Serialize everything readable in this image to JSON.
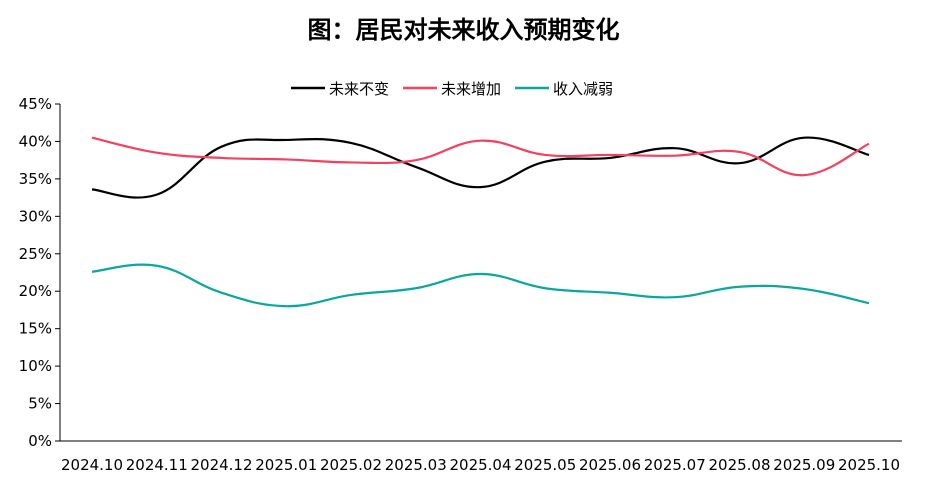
{
  "chart_data": {
    "type": "line",
    "title": "图：居民对未来收入预期变化",
    "xlabel": "",
    "ylabel": "",
    "categories": [
      "2024.10",
      "2024.11",
      "2024.12",
      "2025.01",
      "2025.02",
      "2025.03",
      "2025.04",
      "2025.05",
      "2025.06",
      "2025.07",
      "2025.08",
      "2025.09",
      "2025.10"
    ],
    "ylim": [
      0,
      45
    ],
    "yticks": [
      "0%",
      "5%",
      "10%",
      "15%",
      "20%",
      "25%",
      "30%",
      "35%",
      "40%",
      "45%"
    ],
    "ytick_values": [
      0,
      5,
      10,
      15,
      20,
      25,
      30,
      35,
      40,
      45
    ],
    "grid": false,
    "legend_position": "top",
    "smooth": true,
    "series": [
      {
        "name": "未来不变",
        "color": "#000000",
        "values": [
          33.6,
          32.9,
          39.3,
          40.2,
          39.8,
          36.6,
          33.9,
          37.3,
          37.8,
          39.1,
          37.1,
          40.5,
          38.2
        ]
      },
      {
        "name": "未来增加",
        "color": "#f5405f",
        "values": [
          40.5,
          38.5,
          37.8,
          37.6,
          37.2,
          37.5,
          40.1,
          38.2,
          38.2,
          38.1,
          38.6,
          35.5,
          39.7
        ]
      },
      {
        "name": "收入减弱",
        "color": "#0aa79e",
        "values": [
          22.6,
          23.4,
          19.8,
          18.0,
          19.5,
          20.4,
          22.3,
          20.4,
          19.8,
          19.2,
          20.6,
          20.3,
          18.4
        ]
      }
    ]
  }
}
